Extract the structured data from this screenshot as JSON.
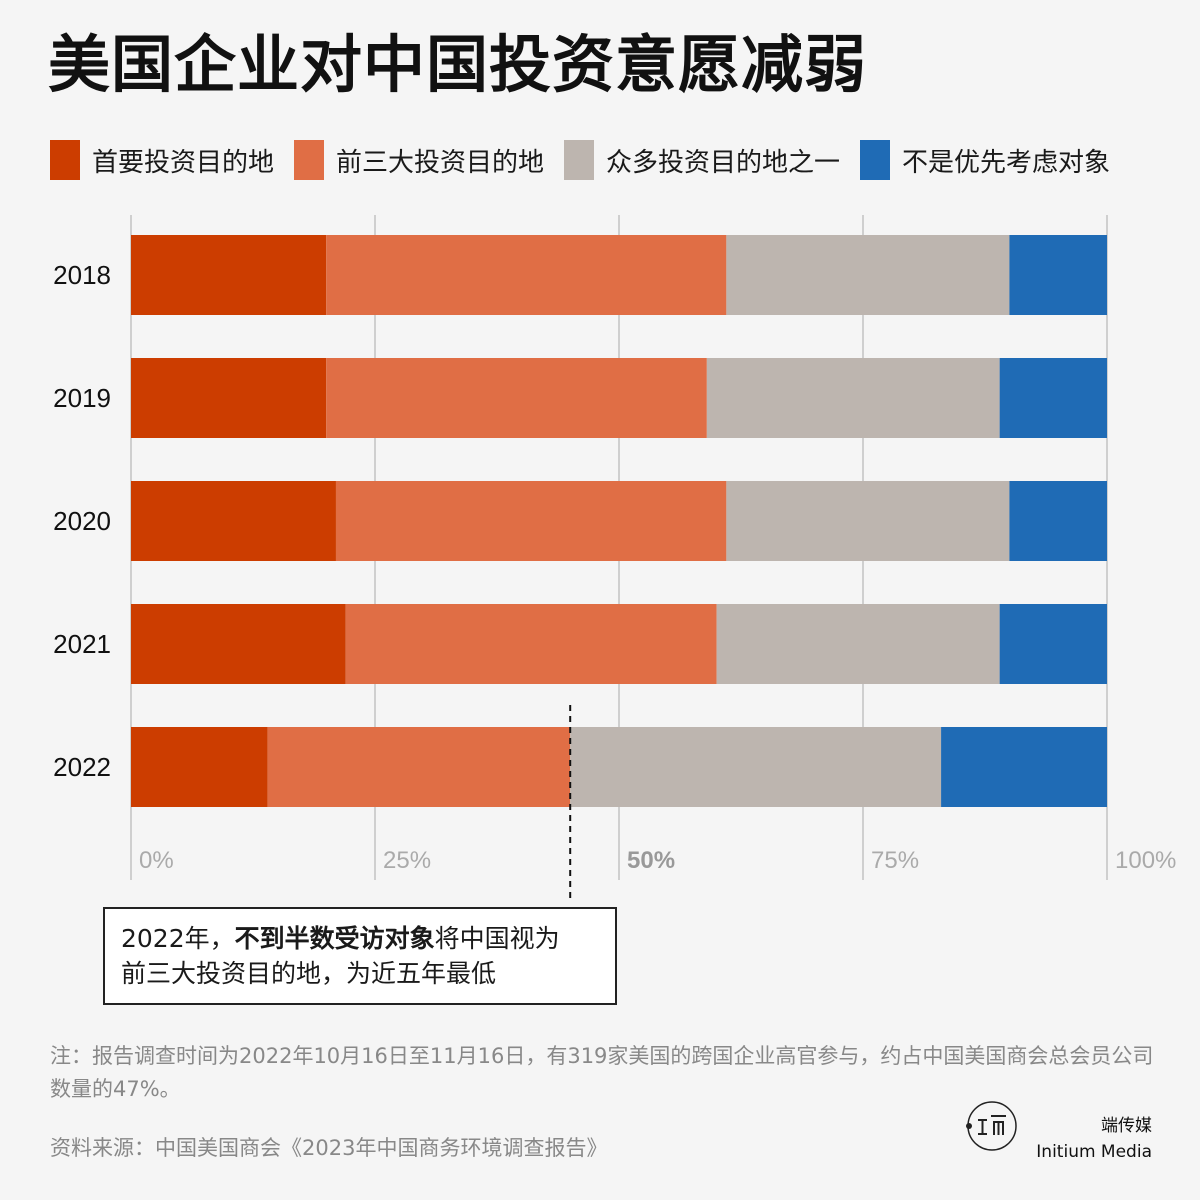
{
  "title": "美国企业对中国投资意愿减弱",
  "legend": [
    {
      "label": "首要投资目的地",
      "color": "#cc3d00"
    },
    {
      "label": "前三大投资目的地",
      "color": "#e06e45"
    },
    {
      "label": "众多投资目的地之一",
      "color": "#bdb5af"
    },
    {
      "label": "不是优先考虑对象",
      "color": "#1f6bb5"
    }
  ],
  "chart_data": {
    "type": "bar",
    "orientation": "horizontal",
    "stacked": true,
    "categories": [
      "2018",
      "2019",
      "2020",
      "2021",
      "2022"
    ],
    "series": [
      {
        "name": "首要投资目的地",
        "color": "#cc3d00",
        "values": [
          20,
          20,
          21,
          22,
          14
        ]
      },
      {
        "name": "前三大投资目的地",
        "color": "#e06e45",
        "values": [
          41,
          39,
          40,
          38,
          31
        ]
      },
      {
        "name": "众多投资目的地之一",
        "color": "#bdb5af",
        "values": [
          29,
          30,
          29,
          29,
          38
        ]
      },
      {
        "name": "不是优先考虑对象",
        "color": "#1f6bb5",
        "values": [
          10,
          11,
          10,
          11,
          17
        ]
      }
    ],
    "xlim": [
      0,
      100
    ],
    "xticks": [
      "0%",
      "25%",
      "50%",
      "75%",
      "100%"
    ],
    "highlight_tick": "50%",
    "grid": true,
    "annotation_year": "2022"
  },
  "annotation": {
    "prefix": "2022年，",
    "bold": "不到半数受访对象",
    "suffix": "将中国视为",
    "line2": "前三大投资目的地，为近五年最低"
  },
  "note": "注：报告调查时间为2022年10月16日至11月16日，有319家美国的跨国企业高官参与，约占中国美国商会总会员公司数量的47%。",
  "source": "资料来源：中国美国商会《2023年中国商务环境调查报告》",
  "brand": {
    "cn": "端传媒",
    "en": "Initium Media"
  }
}
